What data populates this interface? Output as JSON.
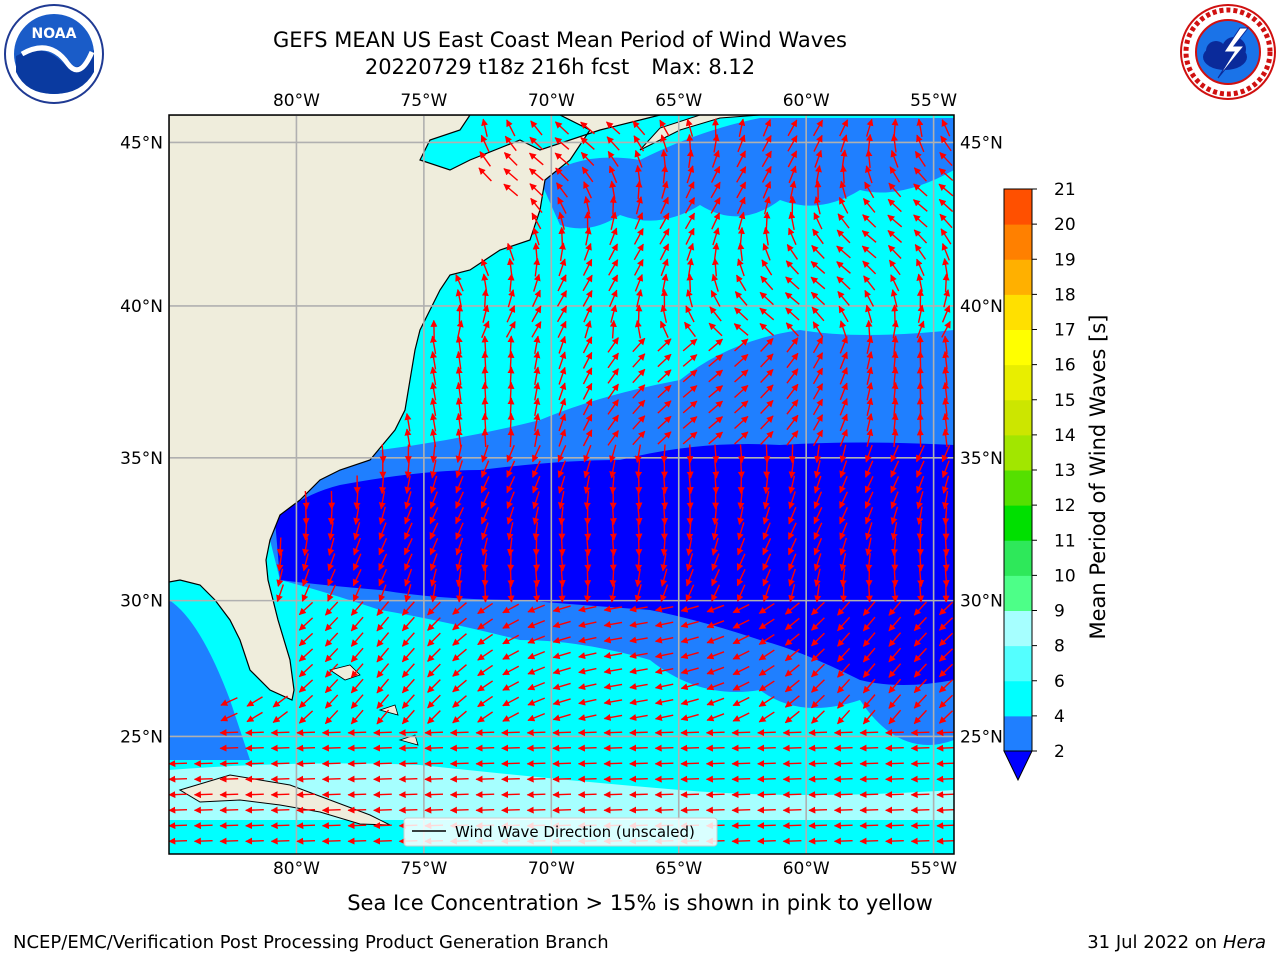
{
  "header": {
    "title": "GEFS MEAN US East Coast Mean Period of Wind Waves",
    "run": "20220729 t18z 216h fcst",
    "max": "Max: 8.12"
  },
  "logos": {
    "left": "noaa-logo",
    "right": "nws-logo"
  },
  "map": {
    "lon_ticks": [
      "80°W",
      "75°W",
      "70°W",
      "65°W",
      "60°W",
      "55°W"
    ],
    "lat_ticks": [
      "45°N",
      "40°N",
      "35°N",
      "30°N",
      "25°N"
    ],
    "lon_values": [
      -80,
      -75,
      -70,
      -65,
      -60,
      -55
    ],
    "lat_values": [
      45,
      40,
      35,
      30,
      25
    ],
    "extent": {
      "lon_min": -85,
      "lon_max": -54.2,
      "lat_min": 20.5,
      "lat_max": 45.8
    },
    "legend": "Wind Wave Direction (unscaled)",
    "colors": {
      "land": "#efeddc",
      "arrows": "#ff0000",
      "grid": "#b0b0b0"
    },
    "period_regions": [
      {
        "level": "2-4",
        "color": "#0000ff",
        "description": "central band about 28-34N"
      },
      {
        "level": "4-6",
        "color": "#1f7fff",
        "description": "flanks of central band and north"
      },
      {
        "level": "6-8",
        "color": "#00ffff",
        "description": "mid-latitudes and south"
      },
      {
        "level": "8-9",
        "color": "#a6ffff",
        "description": "Caribbean strip near 21-22N"
      }
    ]
  },
  "colorbar": {
    "label": "Mean Period of Wind Waves [s]",
    "ticks": [
      "2",
      "4",
      "6",
      "8",
      "9",
      "10",
      "11",
      "12",
      "13",
      "14",
      "15",
      "16",
      "17",
      "18",
      "19",
      "20",
      "21"
    ],
    "colors": [
      "#1f7fff",
      "#00ffff",
      "#54ffff",
      "#a6ffff",
      "#4dff88",
      "#2ee85a",
      "#00e000",
      "#55e000",
      "#a2e600",
      "#cce600",
      "#e8ee00",
      "#ffff00",
      "#ffe000",
      "#ffb000",
      "#ff8000",
      "#ff5000",
      "#ff3000",
      "#ff0000"
    ],
    "under_color": "#0000ff"
  },
  "footer": {
    "note": "Sea Ice Concentration > 15% is shown in pink to yellow",
    "left": "NCEP/EMC/Verification Post Processing Product Generation Branch",
    "date": "31 Jul 2022 on",
    "host": "Hera"
  }
}
